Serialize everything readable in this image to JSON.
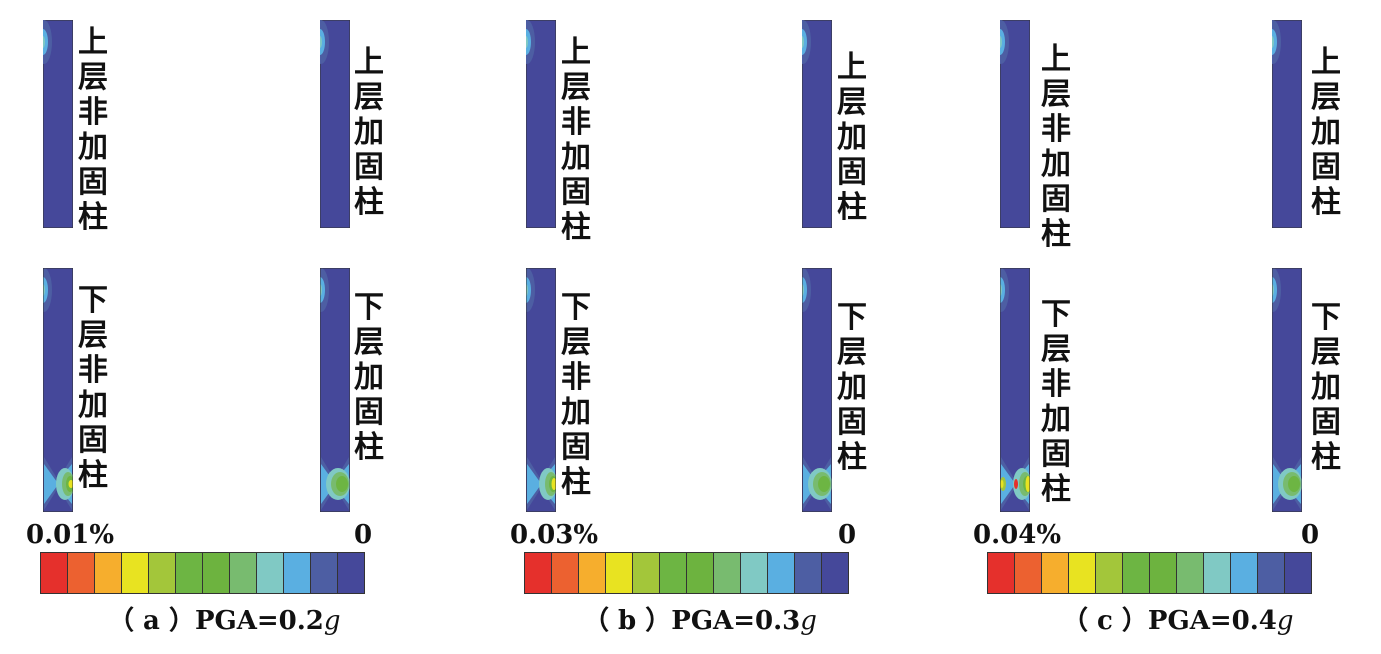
{
  "legend_colors": [
    "#e5302c",
    "#ec6130",
    "#f6ae2d",
    "#e8e321",
    "#a3c63a",
    "#6db543",
    "#6db33f",
    "#78bb6f",
    "#80c9c4",
    "#5aafe1",
    "#4d5ea3",
    "#45489a"
  ],
  "panels": [
    {
      "id": "a",
      "max_label": "0.01%",
      "min_label": "0",
      "caption": "（ a ）PGA=0.2",
      "caption_unit": "g",
      "labels": {
        "upper_unreinforced": "上层非加固柱",
        "upper_reinforced": "上层加固柱",
        "lower_unreinforced": "下层非加固柱",
        "lower_reinforced": "下层加固柱"
      }
    },
    {
      "id": "b",
      "max_label": "0.03%",
      "min_label": "0",
      "caption": "（ b ）PGA=0.3",
      "caption_unit": "g",
      "labels": {
        "upper_unreinforced": "上层非加固柱",
        "upper_reinforced": "上层加固柱",
        "lower_unreinforced": "下层非加固柱",
        "lower_reinforced": "下层加固柱"
      }
    },
    {
      "id": "c",
      "max_label": "0.04%",
      "min_label": "0",
      "caption": "（ c ）PGA=0.4",
      "caption_unit": "g",
      "labels": {
        "upper_unreinforced": "上层非加固柱",
        "upper_reinforced": "上层加固柱",
        "lower_unreinforced": "下层非加固柱",
        "lower_reinforced": "下层加固柱"
      }
    }
  ]
}
